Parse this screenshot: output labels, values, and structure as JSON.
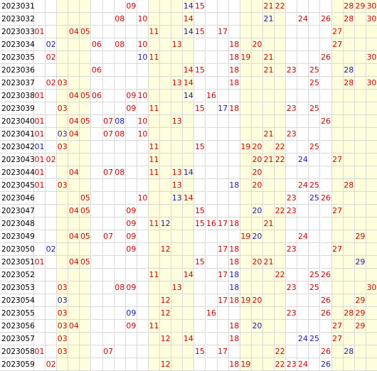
{
  "colors": {
    "red": "#cc0000",
    "blue": "#1a1aa8",
    "band": "#ffffdd",
    "grid": "#d9d9d9"
  },
  "bands": [
    [
      3,
      5
    ],
    [
      11,
      14
    ],
    [
      19,
      22
    ],
    [
      27,
      30
    ]
  ],
  "rows": [
    {
      "id": "2023031",
      "red": [
        9,
        15,
        21,
        22,
        28,
        29,
        30
      ],
      "blue": [
        14
      ]
    },
    {
      "id": "2023032",
      "red": [
        8,
        10,
        14,
        24,
        26,
        28,
        30
      ],
      "blue": [
        21
      ]
    },
    {
      "id": "2023033",
      "red": [
        1,
        4,
        5,
        11,
        15,
        17,
        27
      ],
      "blue": [
        14
      ]
    },
    {
      "id": "2023034",
      "red": [
        6,
        8,
        10,
        13,
        18,
        20,
        27
      ],
      "blue": [
        2
      ]
    },
    {
      "id": "2023035",
      "red": [
        2,
        11,
        18,
        19,
        21,
        26,
        30
      ],
      "blue": [
        10
      ]
    },
    {
      "id": "2023036",
      "red": [
        6,
        14,
        15,
        18,
        21,
        23,
        25
      ],
      "blue": [
        28
      ]
    },
    {
      "id": "2023037",
      "red": [
        2,
        3,
        13,
        14,
        18,
        25,
        28,
        30
      ],
      "blue": []
    },
    {
      "id": "2023038",
      "red": [
        1,
        4,
        5,
        6,
        9,
        10,
        16
      ],
      "blue": [
        14
      ]
    },
    {
      "id": "2023039",
      "red": [
        3,
        9,
        11,
        15,
        18,
        23,
        25
      ],
      "blue": [
        17
      ]
    },
    {
      "id": "2023040",
      "red": [
        1,
        4,
        5,
        7,
        10,
        13,
        26
      ],
      "blue": [
        8
      ]
    },
    {
      "id": "2023041",
      "red": [
        1,
        4,
        7,
        8,
        10,
        21,
        23
      ],
      "blue": [
        3
      ]
    },
    {
      "id": "2023042",
      "red": [
        3,
        11,
        15,
        19,
        20,
        22,
        25
      ],
      "blue": [
        1
      ]
    },
    {
      "id": "2023043",
      "red": [
        1,
        2,
        11,
        20,
        21,
        22,
        27
      ],
      "blue": [
        24
      ]
    },
    {
      "id": "2023044",
      "red": [
        1,
        4,
        7,
        8,
        11,
        13,
        20
      ],
      "blue": [
        14
      ]
    },
    {
      "id": "2023045",
      "red": [
        1,
        3,
        13,
        20,
        24,
        25,
        28
      ],
      "blue": [
        18
      ]
    },
    {
      "id": "2023046",
      "red": [
        5,
        10,
        14,
        23,
        26
      ],
      "blue": [
        13,
        25
      ]
    },
    {
      "id": "2023047",
      "red": [
        4,
        5,
        9,
        15,
        22,
        23,
        27
      ],
      "blue": [
        20
      ]
    },
    {
      "id": "2023048",
      "red": [
        9,
        11,
        15,
        16,
        17,
        18,
        21
      ],
      "blue": [
        12
      ]
    },
    {
      "id": "2023049",
      "red": [
        4,
        5,
        7,
        9,
        19,
        24,
        29
      ],
      "blue": [
        20
      ]
    },
    {
      "id": "2023050",
      "red": [
        9,
        12,
        17,
        18,
        23,
        27
      ],
      "blue": [
        2
      ]
    },
    {
      "id": "2023051",
      "red": [
        1,
        4,
        5,
        15,
        18,
        20,
        21
      ],
      "blue": [
        29
      ]
    },
    {
      "id": "2023052",
      "red": [
        11,
        14,
        17,
        22,
        25,
        26
      ],
      "blue": [
        18
      ]
    },
    {
      "id": "2023053",
      "red": [
        3,
        8,
        9,
        13,
        23,
        25,
        30
      ],
      "blue": [
        18
      ]
    },
    {
      "id": "2023054",
      "red": [
        12,
        17,
        18,
        19,
        20,
        26,
        29
      ],
      "blue": [
        3
      ]
    },
    {
      "id": "2023055",
      "red": [
        3,
        12,
        16,
        23,
        26,
        28,
        29
      ],
      "blue": [
        9
      ]
    },
    {
      "id": "2023056",
      "red": [
        3,
        4,
        9,
        11,
        18,
        27,
        29
      ],
      "blue": [
        20
      ]
    },
    {
      "id": "2023057",
      "red": [
        3,
        12,
        14,
        18,
        27
      ],
      "blue": [
        24,
        25
      ]
    },
    {
      "id": "2023058",
      "red": [
        1,
        3,
        7,
        15,
        17,
        22,
        26
      ],
      "blue": [
        28
      ]
    },
    {
      "id": "2023059",
      "red": [
        2,
        12,
        18,
        19,
        22,
        23,
        24
      ],
      "blue": [
        26
      ]
    }
  ]
}
